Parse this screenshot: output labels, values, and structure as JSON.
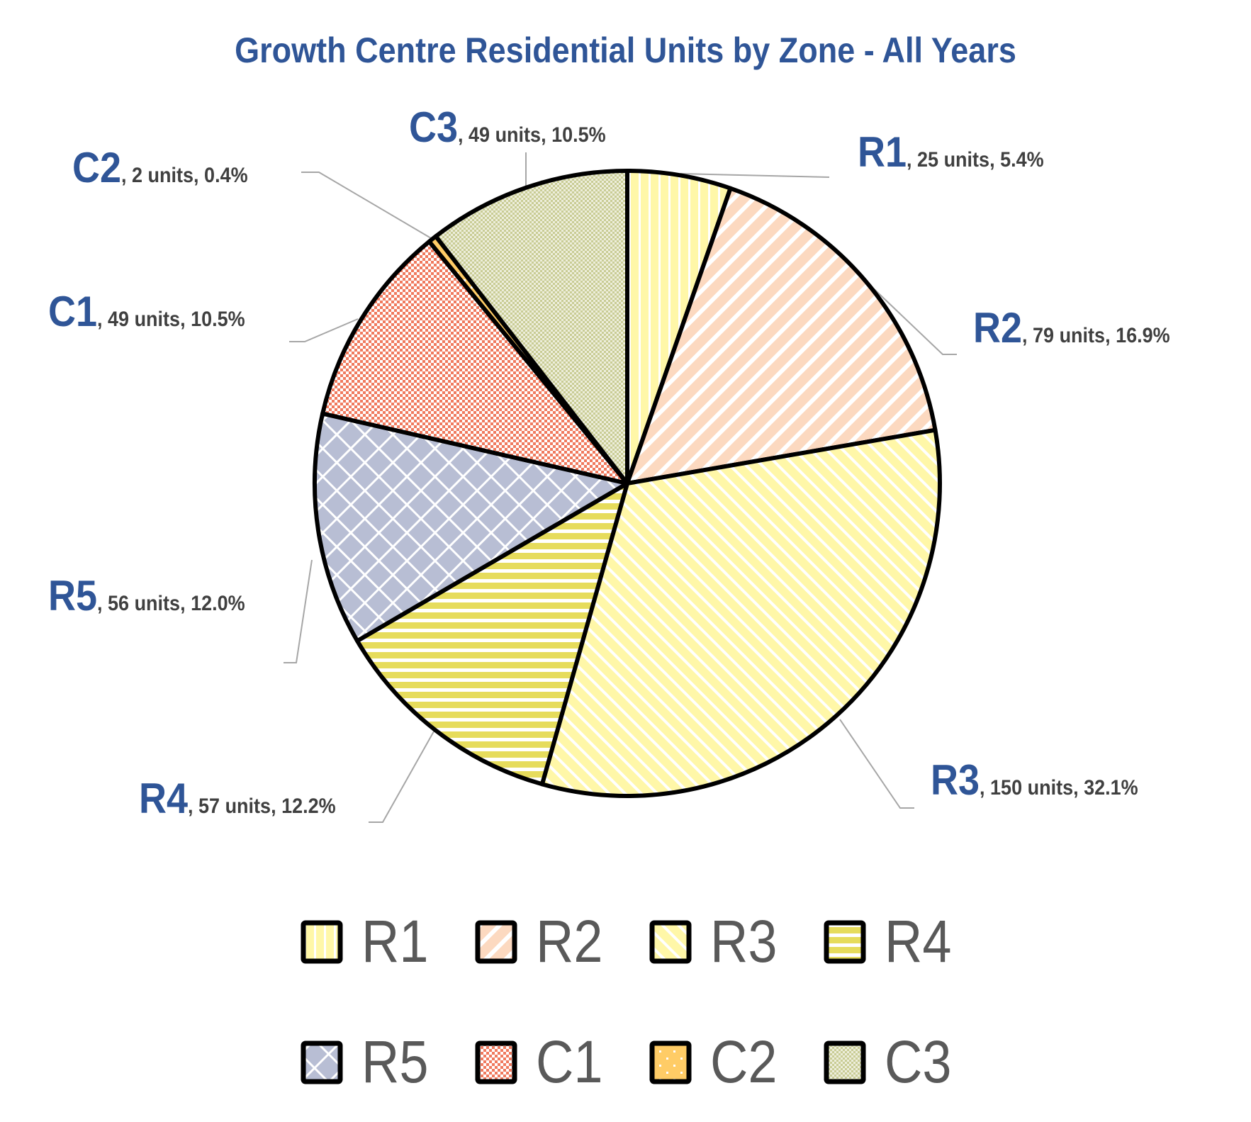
{
  "chart_data": {
    "type": "pie",
    "title": "Growth Centre Residential Units by Zone - All Years",
    "categories": [
      "R1",
      "R2",
      "R3",
      "R4",
      "R5",
      "C1",
      "C2",
      "C3"
    ],
    "values": [
      25,
      79,
      150,
      57,
      56,
      49,
      2,
      49
    ],
    "percentages": [
      5.4,
      16.9,
      32.1,
      12.2,
      12.0,
      10.5,
      0.4,
      10.5
    ],
    "data_labels": [
      ", 25 units, 5.4%",
      ", 79 units, 16.9%",
      ", 150 units, 32.1%",
      ", 57 units, 12.2%",
      ", 56 units, 12.0%",
      ", 49 units, 10.5%",
      ", 2 units, 0.4%",
      ", 49 units, 10.5%"
    ],
    "colors": [
      "#FFF7A8",
      "#FCD9C0",
      "#FFF7A8",
      "#E6DC5C",
      "#B8BED4",
      "#F07A5E",
      "#FFCC66",
      "#C9CC95"
    ],
    "start_angle": "top, clockwise",
    "legend_position": "bottom"
  }
}
